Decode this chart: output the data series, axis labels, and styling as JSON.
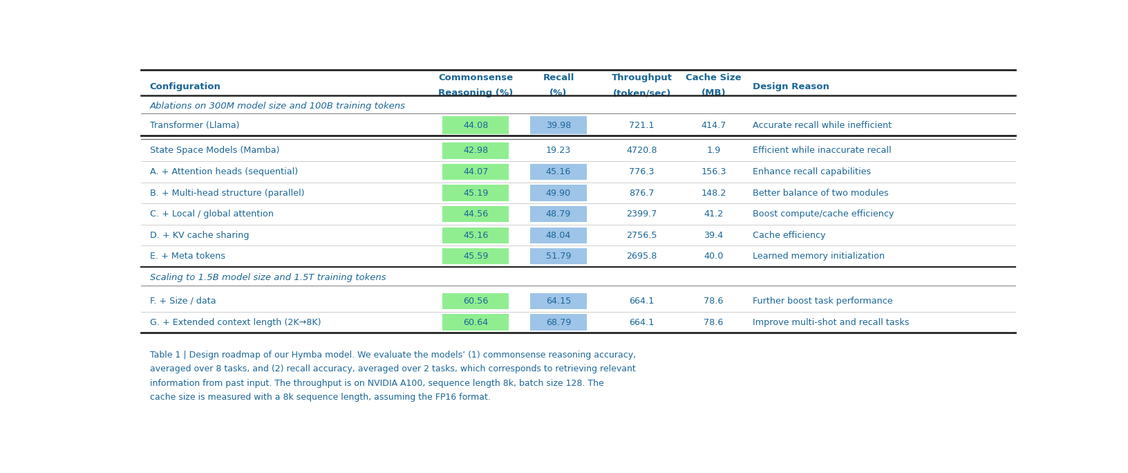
{
  "section1_label": "Ablations on 300M model size and 100B training tokens",
  "section2_label": "Scaling to 1.5B model size and 1.5T training tokens",
  "col_x": {
    "config": 0.01,
    "cr": 0.345,
    "recall": 0.445,
    "throughput": 0.535,
    "cache": 0.625,
    "reason": 0.7
  },
  "col_widths": {
    "cr": 0.076,
    "recall": 0.065
  },
  "s2_rows": [
    [
      "State Space Models (Mamba)",
      "42.98",
      "19.23",
      "4720.8",
      "1.9",
      "Efficient while inaccurate recall",
      true,
      false
    ],
    [
      "A. + Attention heads (sequential)",
      "44.07",
      "45.16",
      "776.3",
      "156.3",
      "Enhance recall capabilities",
      true,
      true
    ],
    [
      "B. + Multi-head structure (parallel)",
      "45.19",
      "49.90",
      "876.7",
      "148.2",
      "Better balance of two modules",
      true,
      true
    ],
    [
      "C. + Local / global attention",
      "44.56",
      "48.79",
      "2399.7",
      "41.2",
      "Boost compute/cache efficiency",
      true,
      true
    ],
    [
      "D. + KV cache sharing",
      "45.16",
      "48.04",
      "2756.5",
      "39.4",
      "Cache efficiency",
      true,
      true
    ],
    [
      "E. + Meta tokens",
      "45.59",
      "51.79",
      "2695.8",
      "40.0",
      "Learned memory initialization",
      true,
      true
    ]
  ],
  "s3_rows": [
    [
      "F. + Size / data",
      "60.56",
      "64.15",
      "664.1",
      "78.6",
      "Further boost task performance"
    ],
    [
      "G. + Extended context length (2K→8K)",
      "60.64",
      "68.79",
      "664.1",
      "78.6",
      "Improve multi-shot and recall tasks"
    ]
  ],
  "green_highlight": "#90EE90",
  "blue_highlight": "#9EC4E8",
  "text_color": "#1a6696",
  "bg_color": "#ffffff",
  "caption": "Table 1 | Design roadmap of our Hymba model. We evaluate the models’ (1) commonsense reasoning accuracy,\naveraged over 8 tasks, and (2) recall accuracy, averaged over 2 tasks, which corresponds to retrieving relevant\ninformation from past input. The throughput is on NVIDIA A100, sequence length 8k, batch size 128. The\ncache size is measured with a 8k sequence length, assuming the FP16 format."
}
